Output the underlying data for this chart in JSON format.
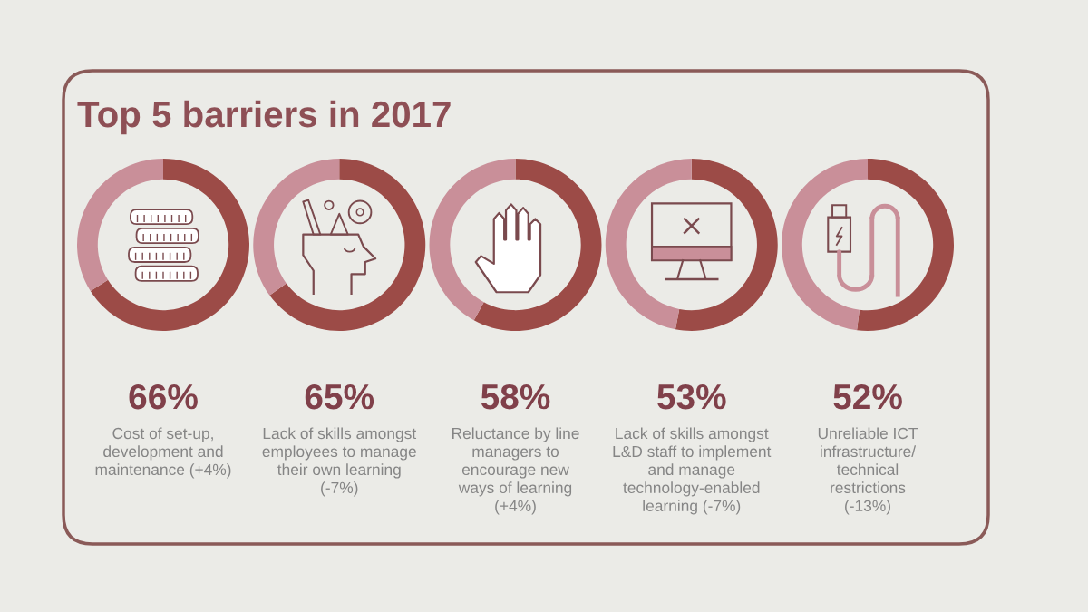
{
  "chart_data": [
    {
      "type": "donut",
      "title": "Top 5 barriers in 2017",
      "categories": [
        null,
        null
      ],
      "values": [
        66,
        34
      ],
      "colors": [
        "#9c4b47",
        "#c98f99"
      ],
      "value_labels": [
        "66%",
        null
      ],
      "annotations": [
        "Cost of set-up,\ndevelopment and\nmaintenance (+4%)"
      ]
    },
    {
      "type": "donut",
      "categories": [
        null,
        null
      ],
      "values": [
        65,
        35
      ],
      "colors": [
        "#9c4b47",
        "#c98f99"
      ],
      "value_labels": [
        "65%",
        null
      ],
      "annotations": [
        "Lack of skills amongst\nemployees to manage\ntheir own learning\n(-7%)"
      ]
    },
    {
      "type": "donut",
      "categories": [
        null,
        null
      ],
      "values": [
        58,
        42
      ],
      "colors": [
        "#9c4b47",
        "#c98f99"
      ],
      "value_labels": [
        "58%",
        null
      ],
      "annotations": [
        "Reluctance by line\nmanagers to\nencourage new\nways of learning\n(+4%)"
      ]
    },
    {
      "type": "donut",
      "categories": [
        null,
        null
      ],
      "values": [
        53,
        47
      ],
      "colors": [
        "#9c4b47",
        "#c98f99"
      ],
      "value_labels": [
        "53%",
        null
      ],
      "annotations": [
        "Lack of skills amongst\nL&D staff to implement\nand manage\ntechnology-enabled\nlearning (-7%)"
      ]
    },
    {
      "type": "donut",
      "categories": [
        null,
        null
      ],
      "values": [
        52,
        48
      ],
      "colors": [
        "#9c4b47",
        "#c98f99"
      ],
      "value_labels": [
        "52%",
        null
      ],
      "annotations": [
        "Unreliable ICT\ninfrastructure/\ntechnical\nrestrictions\n(-13%)"
      ]
    }
  ]
}
